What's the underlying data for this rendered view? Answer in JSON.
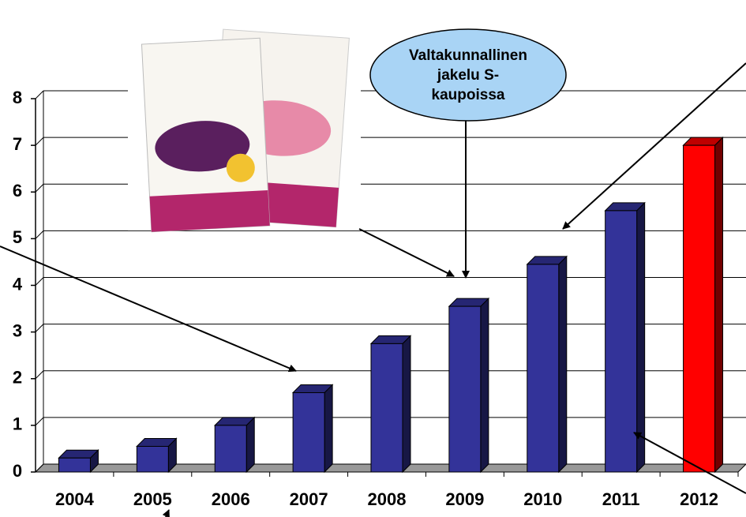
{
  "chart_data": {
    "type": "bar3d",
    "annotation": "Valtakunnallinen jakelu S-kaupoissa",
    "categories": [
      "2004",
      "2005",
      "2006",
      "2007",
      "2008",
      "2009",
      "2010",
      "2011",
      "2012"
    ],
    "values": [
      0.3,
      0.55,
      1.0,
      1.7,
      2.75,
      3.55,
      4.45,
      5.6,
      7.0
    ],
    "colors": [
      "#333399",
      "#333399",
      "#333399",
      "#333399",
      "#333399",
      "#333399",
      "#333399",
      "#333399",
      "#ff0000"
    ],
    "ylim": [
      0,
      8
    ],
    "yticks": [
      0,
      1,
      2,
      3,
      4,
      5,
      6,
      7,
      8
    ],
    "grid": true
  }
}
